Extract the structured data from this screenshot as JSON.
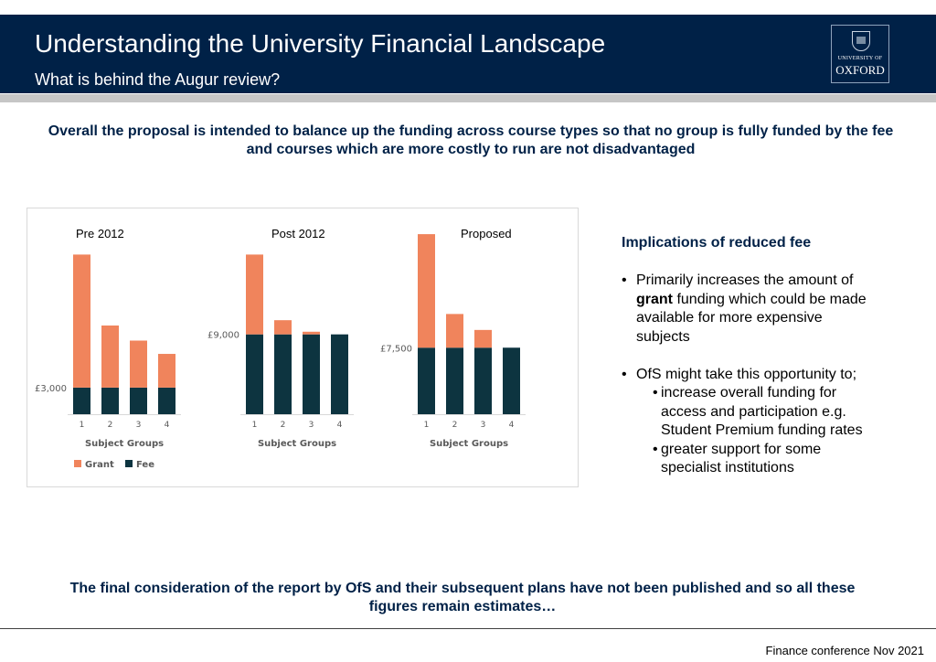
{
  "header": {
    "title": "Understanding the University Financial Landscape",
    "subtitle": "What is behind the Augur review?",
    "logo_top": "UNIVERSITY OF",
    "logo_name": "OXFORD"
  },
  "colors": {
    "navy": "#002147",
    "grant": "#F0845C",
    "fee": "#0D3440"
  },
  "lead": "Overall the proposal is intended to balance up the funding across course types so that no group is fully funded by the fee and courses which are more costly to run are not disadvantaged",
  "chart_data": {
    "type": "bar",
    "stacked": true,
    "legend": [
      "Grant",
      "Fee"
    ],
    "legend_position": "bottom-left",
    "panels": [
      {
        "title": "Pre 2012",
        "categories": [
          "1",
          "2",
          "3",
          "4"
        ],
        "xlabel": "Subject Groups",
        "fee_label": "£3,000",
        "series": [
          {
            "name": "Fee",
            "values": [
              3000,
              3000,
              3000,
              3000
            ]
          },
          {
            "name": "Grant",
            "values": [
              15000,
              7000,
              5300,
              3800
            ]
          }
        ]
      },
      {
        "title": "Post 2012",
        "categories": [
          "1",
          "2",
          "3",
          "4"
        ],
        "xlabel": "Subject Groups",
        "fee_label": "£9,000",
        "series": [
          {
            "name": "Fee",
            "values": [
              9000,
              9000,
              9000,
              9000
            ]
          },
          {
            "name": "Grant",
            "values": [
              9000,
              1600,
              300,
              0
            ]
          }
        ]
      },
      {
        "title": "Proposed",
        "categories": [
          "1",
          "2",
          "3",
          "4"
        ],
        "xlabel": "Subject Groups",
        "fee_label": "£7,500",
        "series": [
          {
            "name": "Fee",
            "values": [
              7500,
              7500,
              7500,
              7500
            ]
          },
          {
            "name": "Grant",
            "values": [
              12800,
              3800,
              2000,
              0
            ]
          }
        ]
      }
    ]
  },
  "implications": {
    "title": "Implications of reduced fee",
    "bullet_char": "•",
    "b1_bold": "grant",
    "b1_line1": "Primarily increases the amount of",
    "b1_line2_rest": " funding which could be made",
    "b1_line3": "available for more expensive",
    "b1_line4": "subjects",
    "b2_line1": "OfS might take this opportunity to;",
    "sub1_line1": "increase overall funding for",
    "sub1_line2": "access and participation e.g.",
    "sub1_line3": "Student Premium funding rates",
    "sub2_line1": "greater support for some",
    "sub2_line2": "specialist institutions"
  },
  "closing": "The final consideration of the report by OfS and their subsequent plans have not been published and so all these figures remain estimates…",
  "footer": "Finance conference Nov 2021"
}
